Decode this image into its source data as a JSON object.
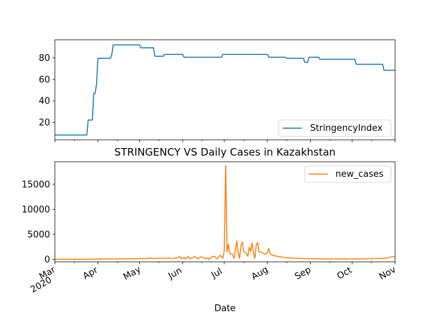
{
  "chart_data": [
    {
      "type": "line",
      "title": "",
      "xlabel": "",
      "ylabel": "",
      "ylim": [
        3.8,
        96.9
      ],
      "yticks": [
        20,
        40,
        60,
        80
      ],
      "x_range": [
        "2020-03-01",
        "2020-11-01"
      ],
      "legend": {
        "position": "lower-right",
        "entries": [
          "StringencyIndex"
        ]
      },
      "grid": false,
      "series": [
        {
          "name": "StringencyIndex",
          "color": "#1f77b4",
          "points": [
            [
              "2020-03-01",
              8.3
            ],
            [
              "2020-03-24",
              8.3
            ],
            [
              "2020-03-25",
              22.2
            ],
            [
              "2020-03-28",
              22.2
            ],
            [
              "2020-03-29",
              47.2
            ],
            [
              "2020-03-30",
              47.2
            ],
            [
              "2020-03-31",
              55.6
            ],
            [
              "2020-04-01",
              79.6
            ],
            [
              "2020-04-10",
              79.6
            ],
            [
              "2020-04-11",
              83.3
            ],
            [
              "2020-04-12",
              92.1
            ],
            [
              "2020-05-01",
              92.1
            ],
            [
              "2020-05-02",
              89.4
            ],
            [
              "2020-05-11",
              89.4
            ],
            [
              "2020-05-12",
              81.5
            ],
            [
              "2020-05-18",
              81.5
            ],
            [
              "2020-05-19",
              83.3
            ],
            [
              "2020-06-01",
              83.3
            ],
            [
              "2020-06-02",
              80.6
            ],
            [
              "2020-06-29",
              80.6
            ],
            [
              "2020-06-30",
              83.3
            ],
            [
              "2020-08-01",
              83.3
            ],
            [
              "2020-08-02",
              80.6
            ],
            [
              "2020-08-14",
              80.6
            ],
            [
              "2020-08-15",
              79.6
            ],
            [
              "2020-08-27",
              79.6
            ],
            [
              "2020-08-28",
              75.9
            ],
            [
              "2020-08-30",
              75.9
            ],
            [
              "2020-08-31",
              80.6
            ],
            [
              "2020-09-07",
              80.6
            ],
            [
              "2020-09-08",
              78.7
            ],
            [
              "2020-10-03",
              78.7
            ],
            [
              "2020-10-04",
              74.1
            ],
            [
              "2020-10-23",
              74.1
            ],
            [
              "2020-10-24",
              68.5
            ],
            [
              "2020-11-01",
              68.5
            ]
          ]
        }
      ]
    },
    {
      "type": "line",
      "title": "STRINGENCY VS Daily Cases in Kazakhstan",
      "xlabel": "Date",
      "ylabel": "",
      "ylim": [
        -500,
        19500
      ],
      "yticks": [
        0,
        5000,
        10000,
        15000
      ],
      "x_range": [
        "2020-03-01",
        "2020-11-01"
      ],
      "xticks": [
        {
          "label": "Mar",
          "sub": "2020",
          "date": "2020-03-01"
        },
        {
          "label": "Apr",
          "sub": "",
          "date": "2020-04-01"
        },
        {
          "label": "May",
          "sub": "",
          "date": "2020-05-01"
        },
        {
          "label": "Jun",
          "sub": "",
          "date": "2020-06-01"
        },
        {
          "label": "Jul",
          "sub": "",
          "date": "2020-07-01"
        },
        {
          "label": "Aug",
          "sub": "",
          "date": "2020-08-01"
        },
        {
          "label": "Sep",
          "sub": "",
          "date": "2020-09-01"
        },
        {
          "label": "Oct",
          "sub": "",
          "date": "2020-10-01"
        },
        {
          "label": "Nov",
          "sub": "",
          "date": "2020-11-01"
        }
      ],
      "legend": {
        "position": "upper-right",
        "entries": [
          "new_cases"
        ]
      },
      "grid": false,
      "series": [
        {
          "name": "new_cases",
          "color": "#ff7f0e",
          "points": [
            [
              "2020-03-01",
              0
            ],
            [
              "2020-03-15",
              5
            ],
            [
              "2020-03-25",
              15
            ],
            [
              "2020-04-01",
              40
            ],
            [
              "2020-04-08",
              60
            ],
            [
              "2020-04-15",
              80
            ],
            [
              "2020-04-22",
              110
            ],
            [
              "2020-04-29",
              90
            ],
            [
              "2020-05-01",
              170
            ],
            [
              "2020-05-05",
              120
            ],
            [
              "2020-05-08",
              250
            ],
            [
              "2020-05-12",
              140
            ],
            [
              "2020-05-15",
              230
            ],
            [
              "2020-05-19",
              180
            ],
            [
              "2020-05-22",
              280
            ],
            [
              "2020-05-25",
              160
            ],
            [
              "2020-05-28",
              320
            ],
            [
              "2020-05-30",
              550
            ],
            [
              "2020-05-31",
              100
            ],
            [
              "2020-06-02",
              400
            ],
            [
              "2020-06-03",
              50
            ],
            [
              "2020-06-05",
              600
            ],
            [
              "2020-06-06",
              100
            ],
            [
              "2020-06-08",
              300
            ],
            [
              "2020-06-10",
              550
            ],
            [
              "2020-06-12",
              80
            ],
            [
              "2020-06-14",
              500
            ],
            [
              "2020-06-16",
              350
            ],
            [
              "2020-06-17",
              100
            ],
            [
              "2020-06-19",
              280
            ],
            [
              "2020-06-20",
              30
            ],
            [
              "2020-06-22",
              450
            ],
            [
              "2020-06-24",
              620
            ],
            [
              "2020-06-25",
              250
            ],
            [
              "2020-06-26",
              150
            ],
            [
              "2020-06-28",
              800
            ],
            [
              "2020-06-29",
              550
            ],
            [
              "2020-06-30",
              200
            ],
            [
              "2020-07-01",
              1800
            ],
            [
              "2020-07-02",
              18800
            ],
            [
              "2020-07-03",
              1500
            ],
            [
              "2020-07-04",
              3000
            ],
            [
              "2020-07-05",
              1100
            ],
            [
              "2020-07-07",
              1000
            ],
            [
              "2020-07-08",
              150
            ],
            [
              "2020-07-09",
              1800
            ],
            [
              "2020-07-10",
              3700
            ],
            [
              "2020-07-11",
              1400
            ],
            [
              "2020-07-12",
              200
            ],
            [
              "2020-07-13",
              2800
            ],
            [
              "2020-07-14",
              3500
            ],
            [
              "2020-07-15",
              1500
            ],
            [
              "2020-07-17",
              1200
            ],
            [
              "2020-07-18",
              600
            ],
            [
              "2020-07-19",
              2400
            ],
            [
              "2020-07-20",
              1600
            ],
            [
              "2020-07-21",
              3300
            ],
            [
              "2020-07-22",
              1300
            ],
            [
              "2020-07-23",
              200
            ],
            [
              "2020-07-24",
              2800
            ],
            [
              "2020-07-25",
              3400
            ],
            [
              "2020-07-26",
              1500
            ],
            [
              "2020-07-28",
              1400
            ],
            [
              "2020-07-30",
              1000
            ],
            [
              "2020-08-01",
              1300
            ],
            [
              "2020-08-02",
              2200
            ],
            [
              "2020-08-03",
              1200
            ],
            [
              "2020-08-04",
              900
            ],
            [
              "2020-08-06",
              750
            ],
            [
              "2020-08-08",
              600
            ],
            [
              "2020-08-11",
              450
            ],
            [
              "2020-08-14",
              350
            ],
            [
              "2020-08-17",
              280
            ],
            [
              "2020-08-21",
              220
            ],
            [
              "2020-08-25",
              170
            ],
            [
              "2020-08-31",
              120
            ],
            [
              "2020-09-10",
              90
            ],
            [
              "2020-09-20",
              80
            ],
            [
              "2020-10-01",
              90
            ],
            [
              "2020-10-10",
              100
            ],
            [
              "2020-10-18",
              130
            ],
            [
              "2020-10-25",
              200
            ],
            [
              "2020-10-28",
              400
            ],
            [
              "2020-10-30",
              550
            ],
            [
              "2020-11-01",
              500
            ]
          ]
        }
      ]
    }
  ]
}
